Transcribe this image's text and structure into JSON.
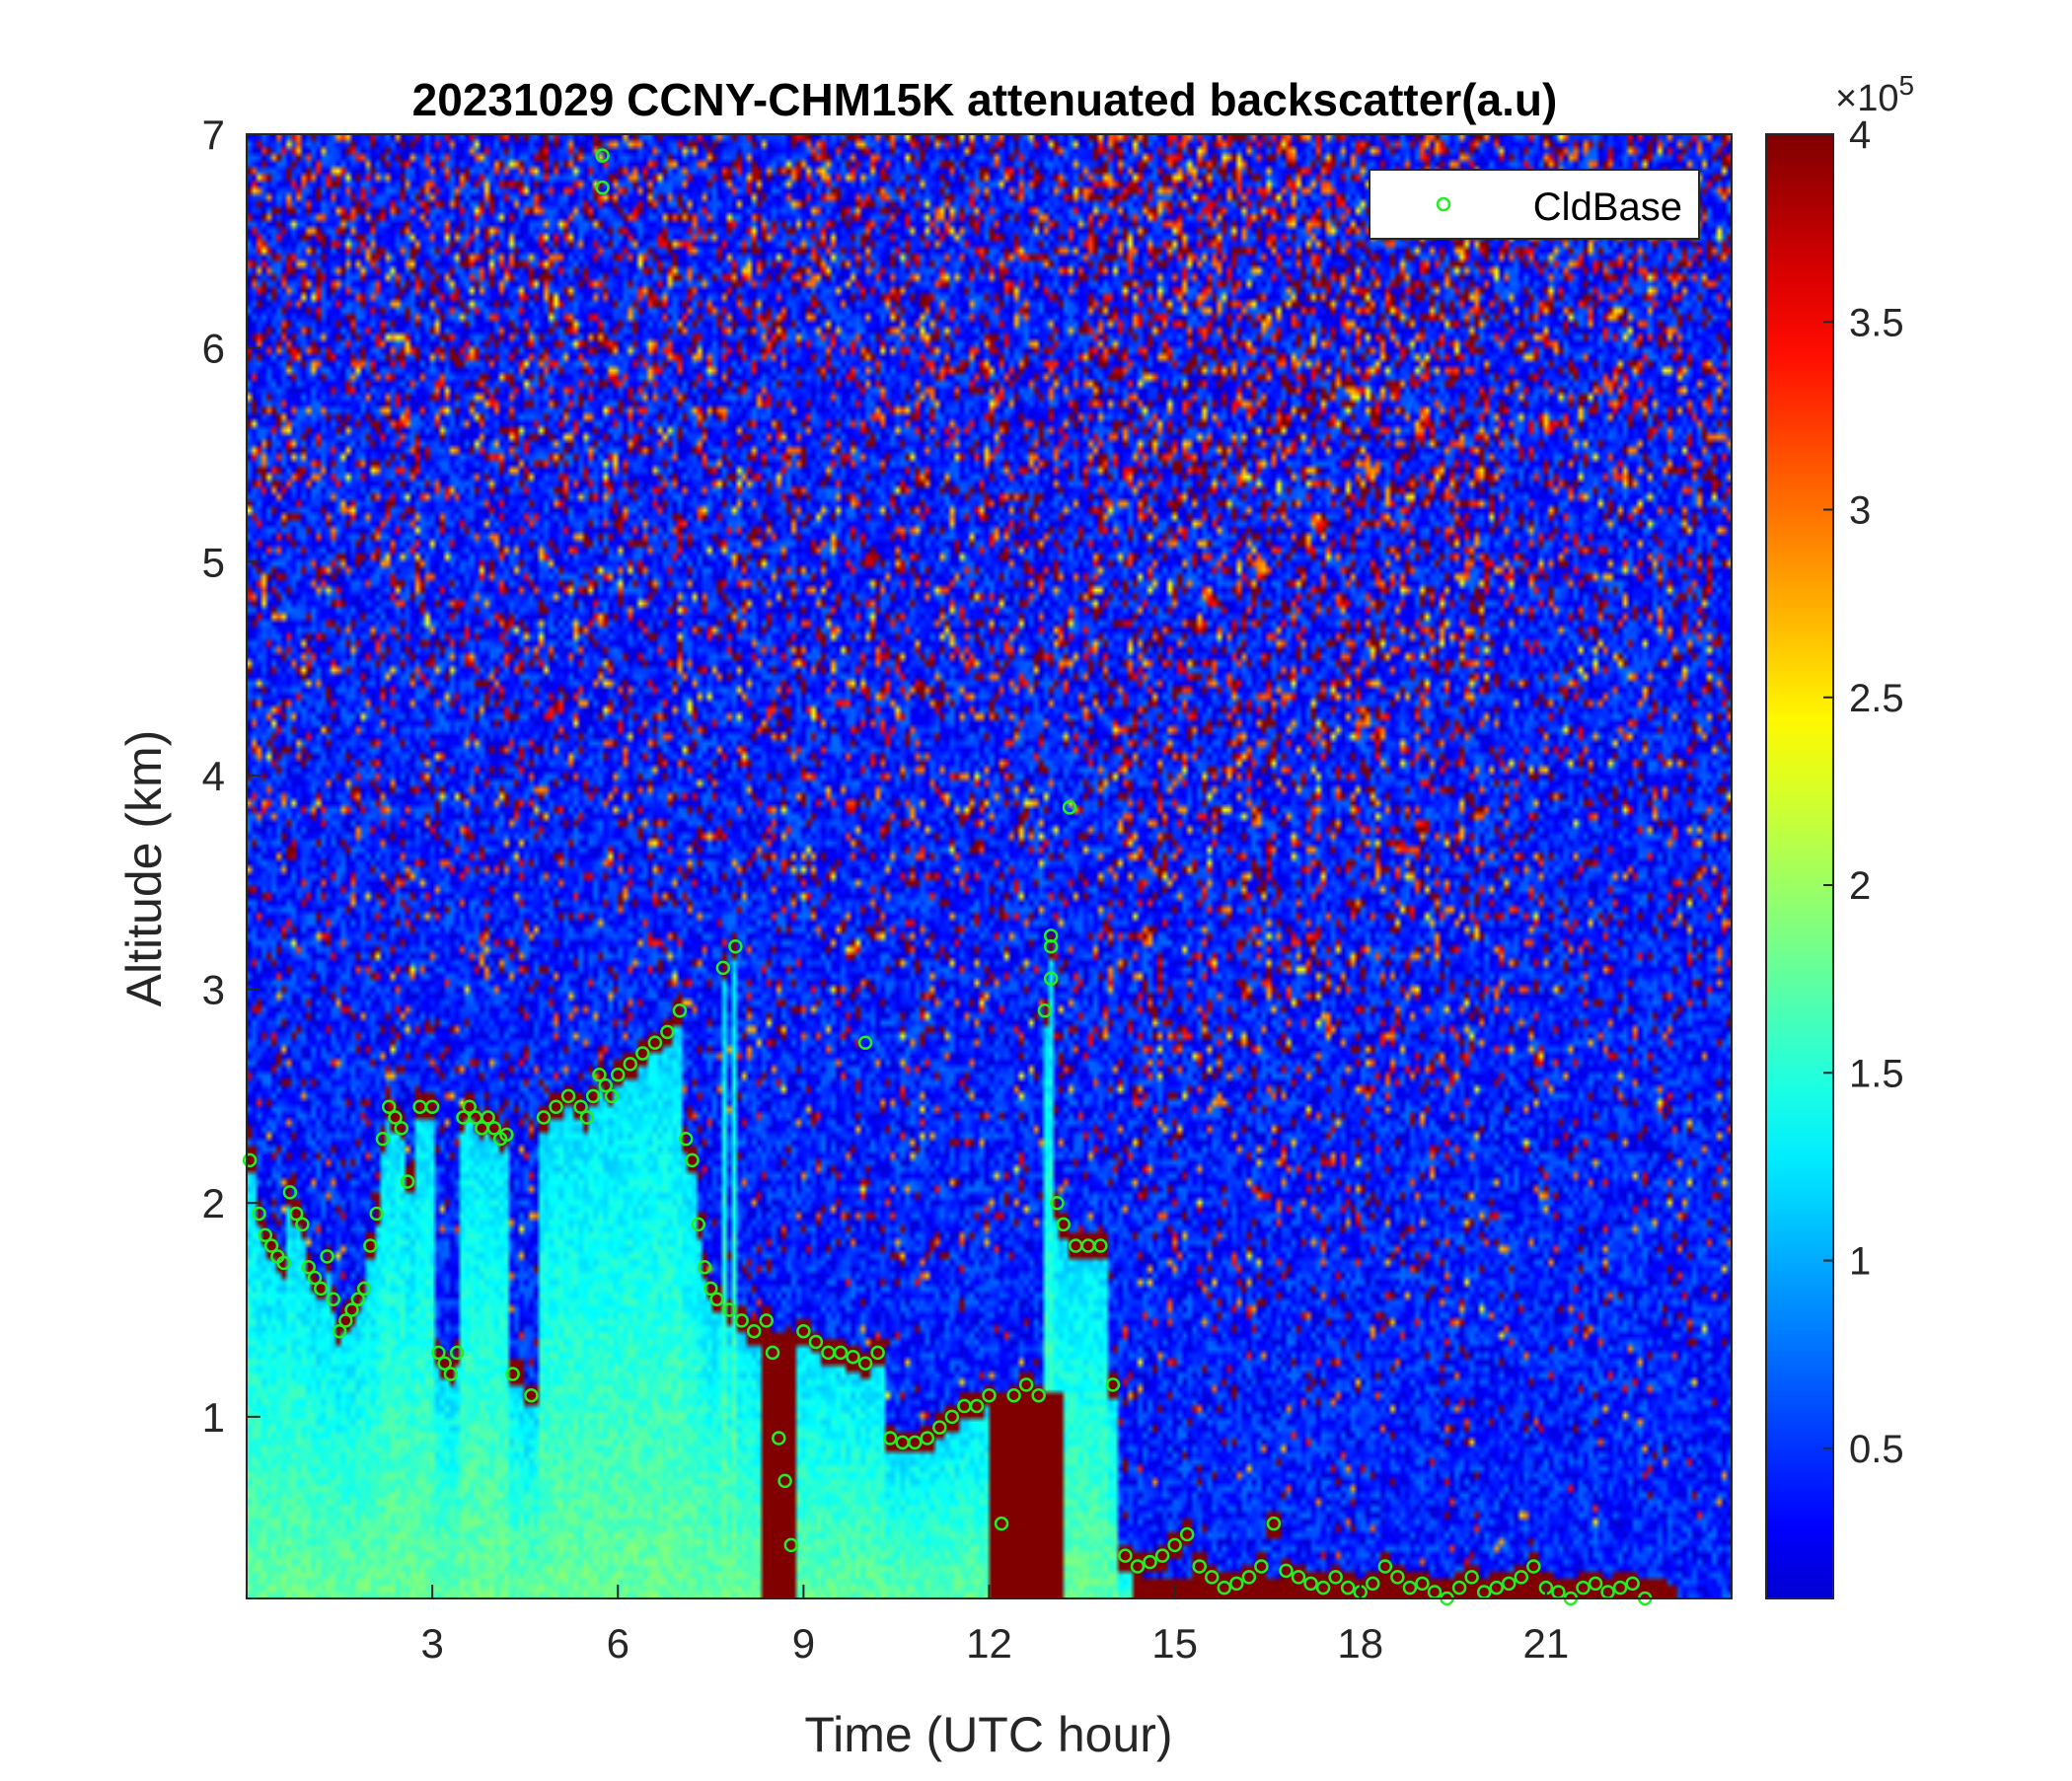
{
  "chart_data": {
    "type": "heatmap",
    "title": "20231029 CCNY-CHM15K attenuated backscatter(a.u)",
    "xlabel": "Time (UTC hour)",
    "ylabel": "Altitude (km)",
    "xlim": [
      0,
      24
    ],
    "ylim": [
      0.15,
      7
    ],
    "x_ticks": [
      3,
      6,
      9,
      12,
      15,
      18,
      21
    ],
    "y_ticks": [
      1,
      2,
      3,
      4,
      5,
      6,
      7
    ],
    "colorbar": {
      "colormap": "jet",
      "clim": [
        0.1,
        4
      ],
      "ticks": [
        0.5,
        1,
        1.5,
        2,
        2.5,
        3,
        3.5,
        4
      ],
      "multiplier": "×10",
      "exponent": "5"
    },
    "legend": {
      "placement": "top-right",
      "entries": [
        "CldBase"
      ]
    },
    "colors": {
      "cloud_base_marker": "#22ee22",
      "background_noise": "#1a3fd6",
      "strong_return": "#7a0000"
    },
    "cloud_base": {
      "name": "CldBase",
      "x": [
        0.05,
        0.2,
        0.3,
        0.4,
        0.5,
        0.6,
        0.7,
        0.8,
        0.9,
        1.0,
        1.1,
        1.2,
        1.3,
        1.4,
        1.5,
        1.6,
        1.7,
        1.8,
        1.9,
        2.0,
        2.1,
        2.2,
        2.3,
        2.4,
        2.5,
        2.6,
        2.8,
        3.0,
        3.1,
        3.2,
        3.3,
        3.4,
        3.5,
        3.6,
        3.7,
        3.8,
        3.9,
        4.0,
        4.1,
        4.2,
        4.3,
        4.6,
        4.8,
        5.0,
        5.2,
        5.4,
        5.5,
        5.6,
        5.7,
        5.8,
        5.9,
        6.0,
        6.2,
        6.4,
        6.6,
        6.8,
        7.0,
        7.1,
        7.2,
        7.3,
        7.4,
        7.5,
        7.6,
        7.8,
        8.0,
        8.2,
        8.4,
        8.5,
        8.6,
        8.7,
        8.8,
        9.0,
        9.2,
        9.4,
        9.6,
        9.8,
        10.0,
        10.2,
        10.4,
        10.6,
        10.8,
        11.0,
        11.2,
        11.4,
        11.6,
        11.8,
        12.0,
        12.2,
        12.4,
        12.6,
        12.8,
        12.9,
        13.0,
        13.1,
        13.2,
        13.4,
        13.6,
        13.8,
        14.0,
        14.2,
        14.4,
        14.6,
        14.8,
        15.0,
        15.2,
        15.4,
        15.6,
        15.8,
        16.0,
        16.2,
        16.4,
        16.6,
        16.8,
        17.0,
        17.2,
        17.4,
        17.6,
        17.8,
        18.0,
        18.2,
        18.4,
        18.6,
        18.8,
        19.0,
        19.2,
        19.4,
        19.6,
        19.8,
        20.0,
        20.2,
        20.4,
        20.6,
        20.8,
        21.0,
        21.2,
        21.4,
        21.6,
        21.8,
        22.0,
        22.2,
        22.4,
        22.6,
        5.75,
        5.75,
        7.7,
        7.9,
        10.0,
        13.0,
        13.0,
        13.3
      ],
      "y": [
        2.2,
        1.95,
        1.85,
        1.8,
        1.75,
        1.72,
        2.05,
        1.95,
        1.9,
        1.7,
        1.65,
        1.6,
        1.75,
        1.55,
        1.4,
        1.45,
        1.5,
        1.55,
        1.6,
        1.8,
        1.95,
        2.3,
        2.45,
        2.4,
        2.35,
        2.1,
        2.45,
        2.45,
        1.3,
        1.25,
        1.2,
        1.3,
        2.4,
        2.45,
        2.4,
        2.35,
        2.4,
        2.35,
        2.3,
        2.32,
        1.2,
        1.1,
        2.4,
        2.45,
        2.5,
        2.45,
        2.4,
        2.5,
        2.6,
        2.55,
        2.5,
        2.6,
        2.65,
        2.7,
        2.75,
        2.8,
        2.9,
        2.3,
        2.2,
        1.9,
        1.7,
        1.6,
        1.55,
        1.5,
        1.45,
        1.4,
        1.45,
        1.3,
        0.9,
        0.7,
        0.4,
        1.4,
        1.35,
        1.3,
        1.3,
        1.28,
        1.25,
        1.3,
        0.9,
        0.88,
        0.88,
        0.9,
        0.95,
        1.0,
        1.05,
        1.05,
        1.1,
        0.5,
        1.1,
        1.15,
        1.1,
        2.9,
        3.2,
        2.0,
        1.9,
        1.8,
        1.8,
        1.8,
        1.15,
        0.35,
        0.3,
        0.32,
        0.35,
        0.4,
        0.45,
        0.3,
        0.25,
        0.2,
        0.22,
        0.25,
        0.3,
        0.5,
        0.28,
        0.25,
        0.22,
        0.2,
        0.25,
        0.2,
        0.18,
        0.22,
        0.3,
        0.25,
        0.2,
        0.22,
        0.18,
        0.15,
        0.2,
        0.25,
        0.18,
        0.2,
        0.22,
        0.25,
        0.3,
        0.2,
        0.18,
        0.15,
        0.2,
        0.22,
        0.18,
        0.2,
        0.22,
        0.15,
        6.9,
        6.75,
        3.1,
        3.2,
        2.75,
        3.25,
        3.05,
        3.85
      ]
    }
  }
}
